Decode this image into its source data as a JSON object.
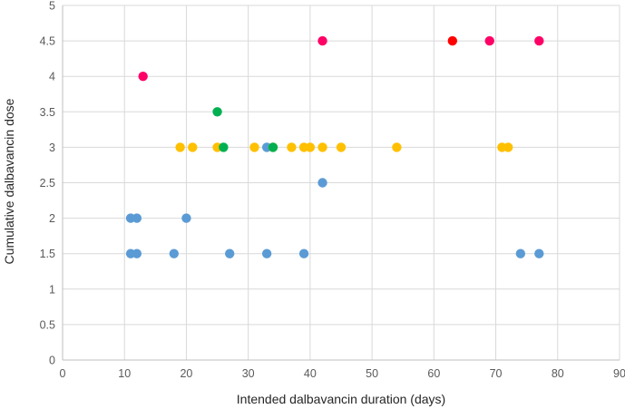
{
  "chart_data": {
    "type": "scatter",
    "title": "",
    "xlabel": "Intended dalbavancin duration (days)",
    "ylabel": "Cumulative  dalbavancin dose",
    "xlim": [
      0,
      90
    ],
    "ylim": [
      0,
      5
    ],
    "xticks": [
      0,
      10,
      20,
      30,
      40,
      50,
      60,
      70,
      80,
      90
    ],
    "yticks": [
      0,
      0.5,
      1,
      1.5,
      2,
      2.5,
      3,
      3.5,
      4,
      4.5,
      5
    ],
    "grid": "vertical-and-horizontal",
    "legend": "none",
    "series": [
      {
        "color": "#5b9bd5",
        "points": [
          {
            "x": 11,
            "y": 2
          },
          {
            "x": 12,
            "y": 2
          },
          {
            "x": 20,
            "y": 2
          },
          {
            "x": 11,
            "y": 1.5
          },
          {
            "x": 12,
            "y": 1.5
          },
          {
            "x": 18,
            "y": 1.5
          },
          {
            "x": 27,
            "y": 1.5
          },
          {
            "x": 33,
            "y": 1.5
          },
          {
            "x": 39,
            "y": 1.5
          },
          {
            "x": 74,
            "y": 1.5
          },
          {
            "x": 77,
            "y": 1.5
          },
          {
            "x": 42,
            "y": 2.5
          },
          {
            "x": 33,
            "y": 3
          }
        ]
      },
      {
        "color": "#ffc000",
        "points": [
          {
            "x": 19,
            "y": 3
          },
          {
            "x": 21,
            "y": 3
          },
          {
            "x": 25,
            "y": 3
          },
          {
            "x": 31,
            "y": 3
          },
          {
            "x": 34,
            "y": 3
          },
          {
            "x": 37,
            "y": 3
          },
          {
            "x": 39,
            "y": 3
          },
          {
            "x": 40,
            "y": 3
          },
          {
            "x": 42,
            "y": 3
          },
          {
            "x": 45,
            "y": 3
          },
          {
            "x": 54,
            "y": 3
          },
          {
            "x": 71,
            "y": 3
          },
          {
            "x": 72,
            "y": 3
          }
        ]
      },
      {
        "color": "#00b050",
        "points": [
          {
            "x": 25,
            "y": 3.5
          },
          {
            "x": 26,
            "y": 3
          },
          {
            "x": 34,
            "y": 3
          }
        ]
      },
      {
        "color": "#ff0066",
        "points": [
          {
            "x": 13,
            "y": 4
          },
          {
            "x": 42,
            "y": 4.5
          },
          {
            "x": 69,
            "y": 4.5
          },
          {
            "x": 77,
            "y": 4.5
          }
        ]
      },
      {
        "color": "#ff0000",
        "points": [
          {
            "x": 63,
            "y": 4.5
          }
        ]
      }
    ]
  }
}
